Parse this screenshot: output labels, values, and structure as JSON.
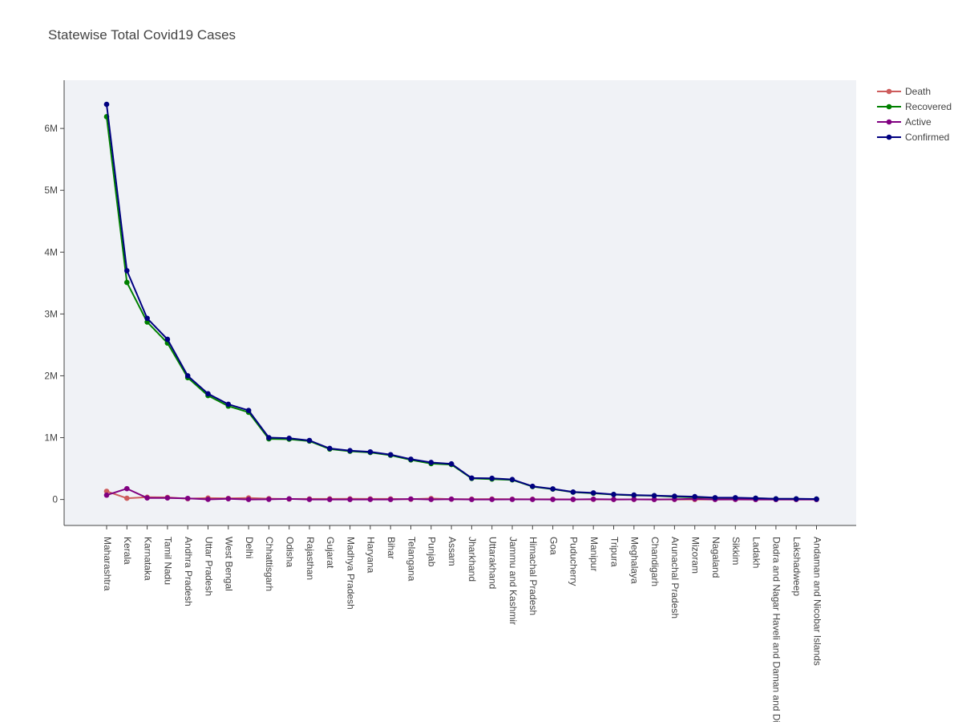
{
  "chart_data": {
    "type": "line",
    "title": "Statewise Total Covid19 Cases",
    "xlabel": "",
    "ylabel": "",
    "ylim": [
      -420000,
      6780000
    ],
    "yticks": [
      {
        "value": 0,
        "label": "0"
      },
      {
        "value": 1000000,
        "label": "1M"
      },
      {
        "value": 2000000,
        "label": "2M"
      },
      {
        "value": 3000000,
        "label": "3M"
      },
      {
        "value": 4000000,
        "label": "4M"
      },
      {
        "value": 5000000,
        "label": "5M"
      },
      {
        "value": 6000000,
        "label": "6M"
      }
    ],
    "grid": false,
    "legend_position": "top-right",
    "categories": [
      "Maharashtra",
      "Kerala",
      "Karnataka",
      "Tamil Nadu",
      "Andhra Pradesh",
      "Uttar Pradesh",
      "West Bengal",
      "Delhi",
      "Chhattisgarh",
      "Odisha",
      "Rajasthan",
      "Gujarat",
      "Madhya Pradesh",
      "Haryana",
      "Bihar",
      "Telangana",
      "Punjab",
      "Assam",
      "Jharkhand",
      "Uttarakhand",
      "Jammu and Kashmir",
      "Himachal Pradesh",
      "Goa",
      "Puducherry",
      "Manipur",
      "Tripura",
      "Meghalaya",
      "Chandigarh",
      "Arunachal Pradesh",
      "Mizoram",
      "Nagaland",
      "Sikkim",
      "Ladakh",
      "Dadra and Nagar Haveli and Daman and Diu",
      "Lakshadweep",
      "Andaman and Nicobar Islands"
    ],
    "series": [
      {
        "name": "Death",
        "color": "#cd5c5c",
        "values": [
          133000,
          20000,
          37000,
          34000,
          13000,
          23000,
          18000,
          25000,
          13500,
          8000,
          9000,
          10000,
          10500,
          9600,
          9600,
          3900,
          16300,
          5500,
          5100,
          7400,
          4400,
          3500,
          3200,
          1800,
          1900,
          800,
          1400,
          800,
          300,
          200,
          700,
          400,
          200,
          4,
          50,
          130
        ]
      },
      {
        "name": "Recovered",
        "color": "#008000",
        "values": [
          6190000,
          3510000,
          2870000,
          2530000,
          1970000,
          1680000,
          1510000,
          1410000,
          980000,
          975000,
          945000,
          815000,
          780000,
          760000,
          715000,
          640000,
          580000,
          565000,
          340000,
          330000,
          317000,
          208000,
          168000,
          118000,
          100000,
          80000,
          67000,
          61000,
          45000,
          35000,
          26000,
          22000,
          20000,
          10600,
          9800,
          7400
        ]
      },
      {
        "name": "Active",
        "color": "#800080",
        "values": [
          70000,
          175000,
          25000,
          25000,
          18000,
          2000,
          12000,
          500,
          3000,
          10000,
          500,
          200,
          200,
          700,
          100,
          8000,
          600,
          5500,
          100,
          300,
          1500,
          1000,
          900,
          900,
          5000,
          800,
          2000,
          40,
          3000,
          11000,
          700,
          2100,
          50,
          10,
          800,
          10
        ]
      },
      {
        "name": "Confirmed",
        "color": "#000080",
        "values": [
          6390000,
          3700000,
          2930000,
          2590000,
          2000000,
          1710000,
          1540000,
          1440000,
          1000000,
          990000,
          955000,
          826000,
          791000,
          770000,
          725000,
          652000,
          599000,
          576000,
          347000,
          343000,
          323000,
          213000,
          172000,
          121000,
          107000,
          82000,
          72000,
          62000,
          53000,
          46000,
          29000,
          29000,
          21000,
          10700,
          10600,
          7600
        ]
      }
    ],
    "legend_order": [
      "Death",
      "Recovered",
      "Active",
      "Confirmed"
    ]
  }
}
